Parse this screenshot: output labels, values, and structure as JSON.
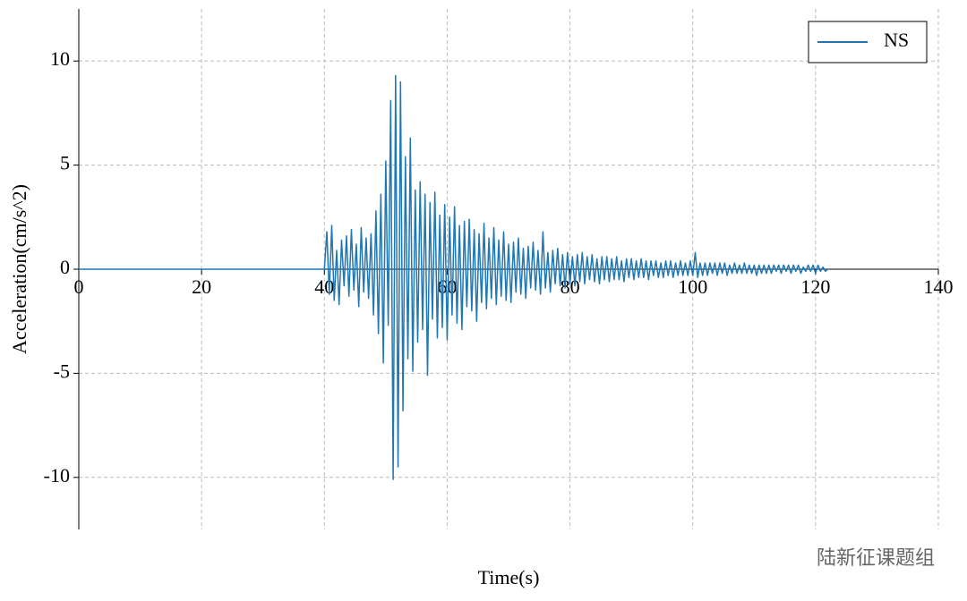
{
  "chart_data": {
    "type": "line",
    "xlabel": "Time(s)",
    "ylabel": "Acceleration(cm/s^2)",
    "xlim": [
      0,
      140
    ],
    "ylim": [
      -12.5,
      12.5
    ],
    "xticks": [
      0,
      20,
      40,
      60,
      80,
      100,
      120,
      140
    ],
    "yticks": [
      -10,
      -5,
      0,
      5,
      10
    ],
    "grid": true,
    "legend": "upper right",
    "x": [
      0,
      40,
      40.4,
      40.8,
      41.2,
      41.6,
      42,
      42.4,
      42.8,
      43.2,
      43.6,
      44,
      44.4,
      44.8,
      45.2,
      45.6,
      46,
      46.4,
      46.8,
      47.2,
      47.6,
      48,
      48.4,
      48.8,
      49.2,
      49.6,
      50,
      50.4,
      50.8,
      51.2,
      51.6,
      52,
      52.4,
      52.8,
      53.2,
      53.6,
      54,
      54.4,
      54.8,
      55.2,
      55.6,
      56,
      56.4,
      56.8,
      57.2,
      57.6,
      58,
      58.4,
      58.8,
      59.2,
      59.6,
      60,
      60.4,
      60.8,
      61.2,
      61.6,
      62,
      62.4,
      62.8,
      63.2,
      63.6,
      64,
      64.4,
      64.8,
      65.2,
      65.6,
      66,
      66.4,
      66.8,
      67.2,
      67.6,
      68,
      68.4,
      68.8,
      69.2,
      69.6,
      70,
      70.4,
      70.8,
      71.2,
      71.6,
      72,
      72.4,
      72.8,
      73.2,
      73.6,
      74,
      74.4,
      74.8,
      75.2,
      75.6,
      76,
      76.4,
      76.8,
      77.2,
      77.6,
      78,
      78.4,
      78.8,
      79.2,
      79.6,
      80,
      80.4,
      80.8,
      81.2,
      81.6,
      82,
      82.4,
      82.8,
      83.2,
      83.6,
      84,
      84.4,
      84.8,
      85.2,
      85.6,
      86,
      86.4,
      86.8,
      87.2,
      87.6,
      88,
      88.4,
      88.8,
      89.2,
      89.6,
      90,
      90.4,
      90.8,
      91.2,
      91.6,
      92,
      92.4,
      92.8,
      93.2,
      93.6,
      94,
      94.4,
      94.8,
      95.2,
      95.6,
      96,
      96.4,
      96.8,
      97.2,
      97.6,
      98,
      98.4,
      98.8,
      99.2,
      99.6,
      100,
      100.4,
      100.8,
      101.2,
      101.6,
      102,
      102.4,
      102.8,
      103.2,
      103.6,
      104,
      104.4,
      104.8,
      105.2,
      105.6,
      106,
      106.4,
      106.8,
      107.2,
      107.6,
      108,
      108.4,
      108.8,
      109.2,
      109.6,
      110,
      110.4,
      110.8,
      111.2,
      111.6,
      112,
      112.4,
      112.8,
      113.2,
      113.6,
      114,
      114.4,
      114.8,
      115.2,
      115.6,
      116,
      116.4,
      116.8,
      117.2,
      117.6,
      118,
      118.4,
      118.8,
      119.2,
      119.6,
      120,
      120.4,
      120.8,
      121.2,
      121.6,
      122
    ],
    "series": [
      {
        "name": "NS",
        "color": "#1f77b4",
        "values": [
          0,
          0,
          1.8,
          -1.2,
          2.1,
          -1.5,
          0.9,
          -1.7,
          1.4,
          -0.8,
          1.6,
          -1.3,
          1.9,
          -1.0,
          1.2,
          -1.8,
          2.0,
          -1.1,
          1.5,
          -1.4,
          1.7,
          -2.2,
          2.8,
          -3.1,
          3.6,
          -4.5,
          5.2,
          -2.7,
          8.1,
          -10.1,
          9.3,
          -9.5,
          9.0,
          -6.8,
          5.4,
          -4.3,
          6.3,
          -4.9,
          3.8,
          -3.5,
          4.2,
          -2.9,
          3.6,
          -5.1,
          3.2,
          -2.4,
          3.7,
          -3.3,
          2.6,
          -2.8,
          3.1,
          -3.4,
          2.5,
          -2.2,
          3.0,
          -2.6,
          2.1,
          -2.9,
          2.3,
          -1.8,
          2.4,
          -2.0,
          1.9,
          -2.5,
          1.7,
          -1.6,
          2.2,
          -1.9,
          1.5,
          -1.4,
          2.0,
          -1.7,
          1.4,
          -1.3,
          1.8,
          -1.5,
          1.2,
          -1.6,
          1.3,
          -1.1,
          1.5,
          -1.2,
          1.0,
          -1.4,
          1.1,
          -0.9,
          1.3,
          -1.0,
          0.9,
          -1.2,
          1.8,
          -0.9,
          0.8,
          -1.1,
          0.9,
          -0.7,
          1.0,
          -0.8,
          0.7,
          -0.9,
          0.8,
          -0.7,
          0.6,
          -0.8,
          0.7,
          -0.6,
          0.8,
          -0.7,
          0.6,
          -0.5,
          0.7,
          -0.6,
          0.5,
          -0.7,
          0.6,
          -0.5,
          0.6,
          -0.6,
          0.5,
          -0.5,
          0.6,
          -0.5,
          0.4,
          -0.6,
          0.5,
          -0.4,
          0.5,
          -0.5,
          0.4,
          -0.4,
          0.5,
          -0.4,
          0.4,
          -0.5,
          0.4,
          -0.3,
          0.4,
          -0.4,
          0.3,
          -0.4,
          0.4,
          -0.3,
          0.4,
          -0.4,
          0.3,
          -0.3,
          0.4,
          -0.3,
          0.3,
          -0.3,
          0.4,
          -0.3,
          0.8,
          -0.4,
          0.3,
          -0.3,
          0.3,
          -0.3,
          0.3,
          -0.2,
          0.3,
          -0.3,
          0.3,
          -0.2,
          0.3,
          -0.3,
          0.2,
          -0.2,
          0.3,
          -0.2,
          0.2,
          -0.2,
          0.3,
          -0.2,
          0.2,
          -0.2,
          0.2,
          -0.3,
          0.2,
          -0.2,
          0.2,
          -0.2,
          0.2,
          -0.2,
          0.2,
          -0.1,
          0.2,
          -0.2,
          0.2,
          -0.1,
          0.2,
          -0.2,
          0.2,
          -0.1,
          0.2,
          -0.2,
          0.1,
          -0.1,
          0.2,
          -0.1,
          0.2,
          -0.2,
          0.2,
          -0.1,
          0.1,
          -0.1,
          0.0
        ]
      }
    ]
  },
  "watermark": "陆新征课题组"
}
